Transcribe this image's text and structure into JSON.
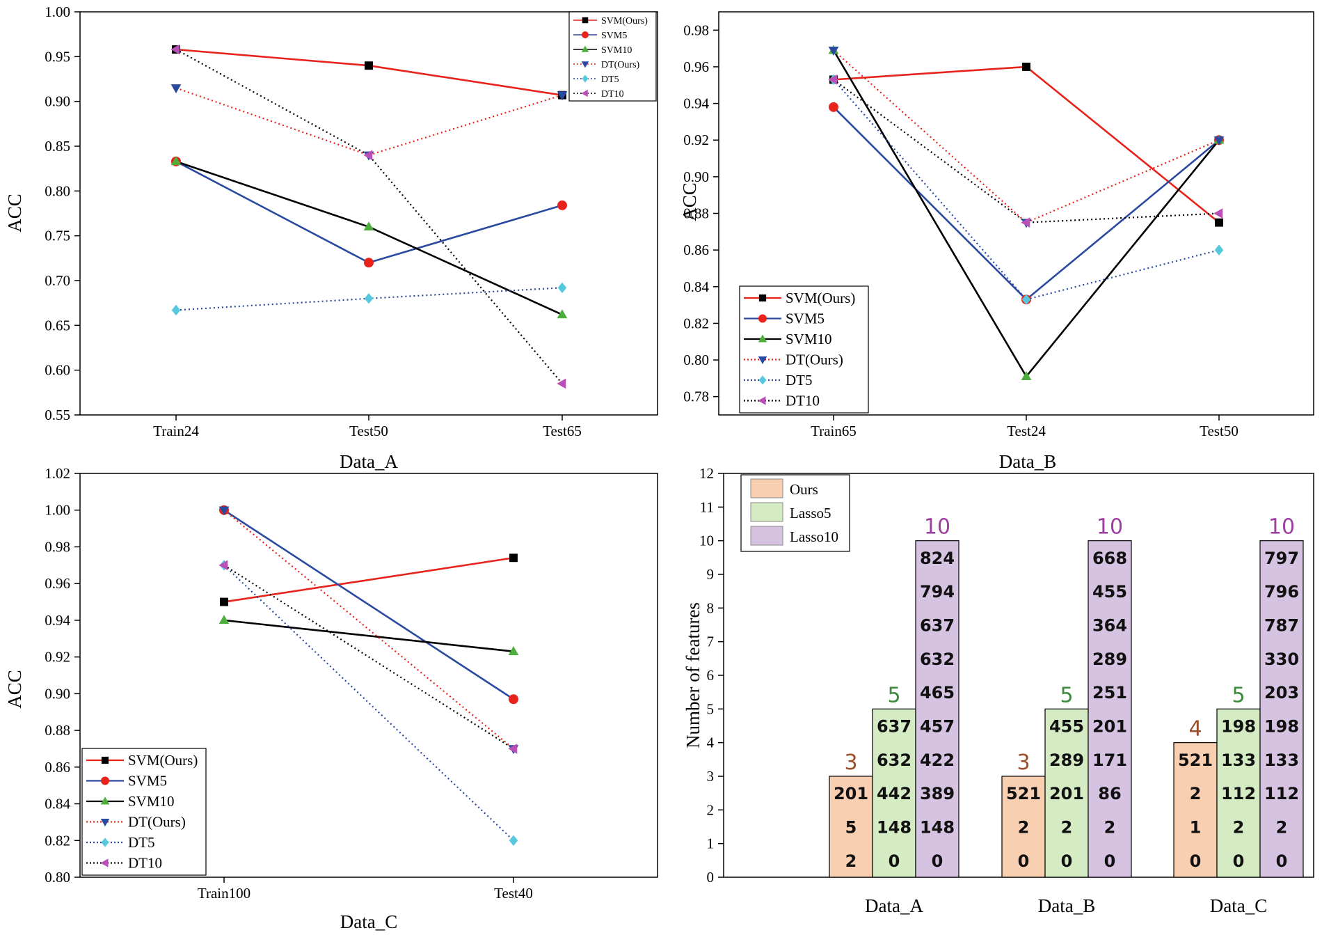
{
  "chart_data": [
    {
      "type": "line",
      "panel": "A",
      "xlabel": "Data_A",
      "ylabel": "ACC",
      "categories": [
        "Train24",
        "Test50",
        "Test65"
      ],
      "ylim": [
        0.55,
        1.0
      ],
      "yticks": [
        "0.55",
        "0.60",
        "0.65",
        "0.70",
        "0.75",
        "0.80",
        "0.85",
        "0.90",
        "0.95",
        "1.00"
      ],
      "legend_position": "top-right",
      "series": [
        {
          "name": "SVM(Ours)",
          "values": [
            0.958,
            0.94,
            0.907
          ],
          "color": "#e8231c",
          "dash": "solid",
          "marker": "square"
        },
        {
          "name": "SVM5",
          "values": [
            0.833,
            0.72,
            0.784
          ],
          "color": "#2a4aa0",
          "dash": "solid",
          "marker": "circle"
        },
        {
          "name": "SVM10",
          "values": [
            0.833,
            0.76,
            0.662
          ],
          "color": "#000000",
          "dash": "solid",
          "marker": "triangle-up"
        },
        {
          "name": "DT(Ours)",
          "values": [
            0.915,
            0.84,
            0.907
          ],
          "color": "#e8231c",
          "dash": "dotted",
          "marker": "triangle-down"
        },
        {
          "name": "DT5",
          "values": [
            0.667,
            0.68,
            0.692
          ],
          "color": "#2a4aa0",
          "dash": "dotted",
          "marker": "diamond"
        },
        {
          "name": "DT10",
          "values": [
            0.958,
            0.84,
            0.585
          ],
          "color": "#000000",
          "dash": "dotted",
          "marker": "triangle-left"
        }
      ]
    },
    {
      "type": "line",
      "panel": "B",
      "xlabel": "Data_B",
      "ylabel": "ACC",
      "categories": [
        "Train65",
        "Test24",
        "Test50"
      ],
      "ylim": [
        0.77,
        0.99
      ],
      "yticks": [
        "0.78",
        "0.80",
        "0.82",
        "0.84",
        "0.86",
        "0.88",
        "0.90",
        "0.92",
        "0.94",
        "0.96",
        "0.98"
      ],
      "legend_position": "bottom-left",
      "series": [
        {
          "name": "SVM(Ours)",
          "values": [
            0.953,
            0.96,
            0.875
          ],
          "color": "#e8231c",
          "dash": "solid",
          "marker": "square"
        },
        {
          "name": "SVM5",
          "values": [
            0.938,
            0.833,
            0.92
          ],
          "color": "#2a4aa0",
          "dash": "solid",
          "marker": "circle"
        },
        {
          "name": "SVM10",
          "values": [
            0.969,
            0.791,
            0.92
          ],
          "color": "#000000",
          "dash": "solid",
          "marker": "triangle-up"
        },
        {
          "name": "DT(Ours)",
          "values": [
            0.969,
            0.875,
            0.92
          ],
          "color": "#e8231c",
          "dash": "dotted",
          "marker": "triangle-down"
        },
        {
          "name": "DT5",
          "values": [
            0.953,
            0.833,
            0.86
          ],
          "color": "#2a4aa0",
          "dash": "dotted",
          "marker": "diamond"
        },
        {
          "name": "DT10",
          "values": [
            0.953,
            0.875,
            0.88
          ],
          "color": "#000000",
          "dash": "dotted",
          "marker": "triangle-left"
        }
      ]
    },
    {
      "type": "line",
      "panel": "C",
      "xlabel": "Data_C",
      "ylabel": "ACC",
      "categories": [
        "Train100",
        "Test40"
      ],
      "ylim": [
        0.8,
        1.02
      ],
      "yticks": [
        "0.80",
        "0.82",
        "0.84",
        "0.86",
        "0.88",
        "0.90",
        "0.92",
        "0.94",
        "0.96",
        "0.98",
        "1.00",
        "1.02"
      ],
      "legend_position": "bottom-left",
      "series": [
        {
          "name": "SVM(Ours)",
          "values": [
            0.95,
            0.974
          ],
          "color": "#e8231c",
          "dash": "solid",
          "marker": "square"
        },
        {
          "name": "SVM5",
          "values": [
            1.0,
            0.897
          ],
          "color": "#2a4aa0",
          "dash": "solid",
          "marker": "circle"
        },
        {
          "name": "SVM10",
          "values": [
            0.94,
            0.923
          ],
          "color": "#000000",
          "dash": "solid",
          "marker": "triangle-up"
        },
        {
          "name": "DT(Ours)",
          "values": [
            1.0,
            0.87
          ],
          "color": "#e8231c",
          "dash": "dotted",
          "marker": "triangle-down"
        },
        {
          "name": "DT5",
          "values": [
            0.97,
            0.82
          ],
          "color": "#2a4aa0",
          "dash": "dotted",
          "marker": "diamond"
        },
        {
          "name": "DT10",
          "values": [
            0.97,
            0.87
          ],
          "color": "#000000",
          "dash": "dotted",
          "marker": "triangle-left"
        }
      ]
    },
    {
      "type": "bar",
      "panel": "D",
      "ylabel": "Number of features",
      "categories": [
        "Data_A",
        "Data_B",
        "Data_C"
      ],
      "ylim": [
        0,
        12
      ],
      "yticks": [
        "0",
        "1",
        "2",
        "3",
        "4",
        "5",
        "6",
        "7",
        "8",
        "9",
        "10",
        "11",
        "12"
      ],
      "legend_position": "top-left",
      "series": [
        {
          "name": "Ours",
          "color": "#f9cfb2",
          "label_color": "#9c4e2a",
          "counts": [
            3,
            3,
            4
          ],
          "features": [
            [
              "2",
              "5",
              "201"
            ],
            [
              "0",
              "2",
              "521"
            ],
            [
              "0",
              "1",
              "2",
              "521"
            ]
          ]
        },
        {
          "name": "Lasso5",
          "color": "#d4ebc4",
          "label_color": "#3c8a3c",
          "counts": [
            5,
            5,
            5
          ],
          "features": [
            [
              "0",
              "148",
              "442",
              "632",
              "637"
            ],
            [
              "0",
              "2",
              "201",
              "289",
              "455"
            ],
            [
              "0",
              "2",
              "112",
              "133",
              "198"
            ]
          ]
        },
        {
          "name": "Lasso10",
          "color": "#d6c3e2",
          "label_color": "#9b3fa0",
          "counts": [
            10,
            10,
            10
          ],
          "features": [
            [
              "0",
              "148",
              "389",
              "422",
              "457",
              "465",
              "632",
              "637",
              "794",
              "824"
            ],
            [
              "0",
              "2",
              "86",
              "171",
              "201",
              "251",
              "289",
              "364",
              "455",
              "668"
            ],
            [
              "0",
              "2",
              "112",
              "133",
              "198",
              "203",
              "330",
              "787",
              "796",
              "797"
            ]
          ]
        }
      ]
    }
  ]
}
